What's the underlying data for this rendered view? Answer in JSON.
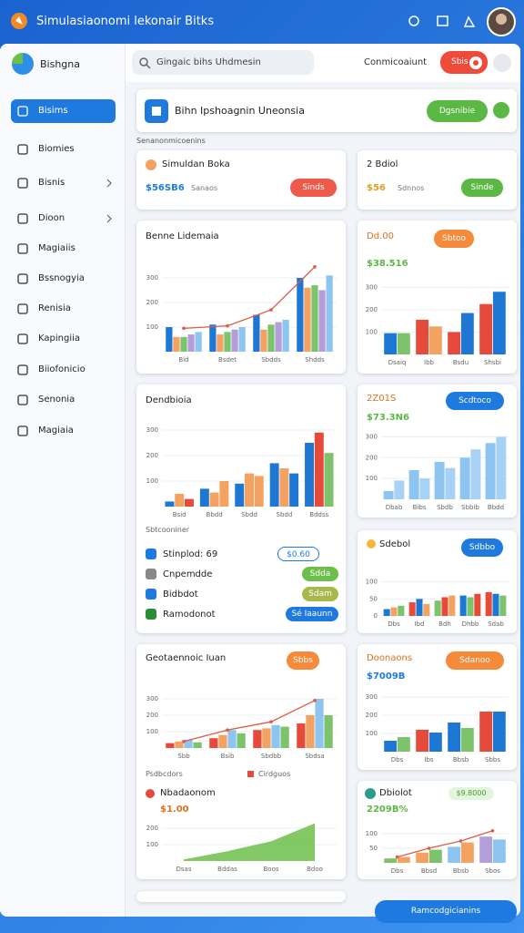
{
  "app": {
    "title": "Simulasiaonomi lekonair Bitks"
  },
  "sidebar": {
    "brand": "Bishgna",
    "items": [
      "Bisims",
      "Biomies",
      "Bisnis",
      "Dioon",
      "Magiaiis",
      "Bssnogyia",
      "Renisia",
      "Kapingiia",
      "Biiofonicio",
      "Senonia",
      "Magiaia"
    ]
  },
  "header": {
    "search": "Gingaic bihs Uhdmesin",
    "account": "Conmicoaiunt",
    "button": "Sbis"
  },
  "banner": {
    "title": "Bihn Ipshoagnin Uneonsia",
    "button": "Dgsnibie"
  },
  "section_label": "Senanonmicoenins",
  "cards": [
    {
      "title": "Simuldan Boka",
      "value": "$56SB6",
      "caption": "Sanaos",
      "button": "Sinds"
    },
    {
      "title": "2 Bdiol",
      "value": "$56",
      "caption": "Sdnnos",
      "button": "Sinde"
    },
    {
      "title": "Benne Lidemaia",
      "chart": {
        "type": "bar",
        "categories": [
          "Bid",
          "Bsdet",
          "Sbdds",
          "Shdds"
        ],
        "ylim": [
          0,
          400
        ],
        "yticks": [
          100,
          200,
          300
        ],
        "series": [
          {
            "color": "#1f77d4",
            "values": [
              100,
              110,
              150,
              300
            ]
          },
          {
            "color": "#f4a261",
            "values": [
              60,
              70,
              90,
              260
            ]
          },
          {
            "color": "#7cc36b",
            "values": [
              60,
              80,
              110,
              270
            ]
          },
          {
            "color": "#b39ddb",
            "values": [
              70,
              90,
              120,
              250
            ]
          },
          {
            "color": "#8ec5f0",
            "values": [
              80,
              100,
              130,
              310
            ]
          },
          {
            "type": "line",
            "color": "#e05a47",
            "values": [
              95,
              105,
              170,
              345
            ]
          }
        ]
      }
    },
    {
      "title": "Dd.00",
      "button": "Sbtoo",
      "value": "$38.516",
      "chart": {
        "type": "bar",
        "categories": [
          "Dsaiq",
          "Ibb",
          "Bsdu",
          "Shsbi"
        ],
        "ylim": [
          0,
          350
        ],
        "yticks": [
          100,
          200,
          300
        ],
        "series": [
          {
            "colors": [
              "#1f77d4",
              "#e64a3b",
              "#e64a3b",
              "#e64a3b"
            ],
            "values": [
              95,
              155,
              100,
              225
            ]
          },
          {
            "colors": [
              "#7cc36b",
              "#f4a261",
              "#1f77d4",
              "#1f77d4"
            ],
            "values": [
              95,
              125,
              185,
              280
            ]
          }
        ]
      }
    },
    {
      "title": "Dendbioia",
      "chart": {
        "type": "bar",
        "categories": [
          "Bsid",
          "Bbdd",
          "Sbdd",
          "Sbdd",
          "Bddss"
        ],
        "ylim": [
          0,
          350
        ],
        "yticks": [
          100,
          200,
          300
        ],
        "series": [
          {
            "color": "#1f77d4",
            "values": [
              20,
              70,
              90,
              170,
              250
            ]
          },
          {
            "colors": [
              "#f4a261",
              "#f4a261",
              "#f4a261",
              "#f4a261",
              "#e64a3b"
            ],
            "values": [
              50,
              55,
              130,
              150,
              290
            ]
          },
          {
            "colors": [
              "#e64a3b",
              "#f4a261",
              "#f4a261",
              "#1f77d4",
              "#7cc36b"
            ],
            "values": [
              30,
              100,
              120,
              130,
              210
            ]
          }
        ]
      },
      "list_title": "Sbtcooniner",
      "rows": [
        {
          "label": "Stinplod: 69",
          "button": "$0.60"
        },
        {
          "label": "Cnpemdde",
          "button": "Sdda"
        },
        {
          "label": "Bidbdot",
          "button": "Sdam"
        },
        {
          "label": "Ramodonot",
          "button": "Sé Iaaunn"
        }
      ]
    },
    {
      "title": "2Z01S",
      "button": "Scdtoco",
      "value": "$73.3N6",
      "chart": {
        "type": "bar",
        "categories": [
          "Dbab",
          "Bibs",
          "Sbdb",
          "Sbbib",
          "Bbdd"
        ],
        "ylim": [
          0,
          350
        ],
        "yticks": [
          100,
          200,
          300
        ],
        "series": [
          {
            "color": "#8ec5f0",
            "values": [
              40,
              140,
              180,
              200,
              270
            ]
          },
          {
            "color": "#a8d2f5",
            "values": [
              90,
              100,
              150,
              240,
              300
            ]
          }
        ]
      }
    },
    {
      "title": "Sdebol",
      "button": "Sdbbo",
      "chart": {
        "type": "bar",
        "categories": [
          "Dbs",
          "Ibd",
          "Bdh",
          "Dhbb",
          "Sdab"
        ],
        "ylim": [
          0,
          150
        ],
        "yticks": [
          0,
          50,
          100
        ],
        "series": [
          {
            "colors": [
              "#1f77d4",
              "#e64a3b",
              "#7cc36b",
              "#1f77d4",
              "#e64a3b"
            ],
            "values": [
              20,
              40,
              45,
              60,
              70
            ]
          },
          {
            "colors": [
              "#f4a261",
              "#1f77d4",
              "#e64a3b",
              "#7cc36b",
              "#1f77d4"
            ],
            "values": [
              25,
              50,
              55,
              55,
              65
            ]
          },
          {
            "colors": [
              "#7cc36b",
              "#f4a261",
              "#f4a261",
              "#e64a3b",
              "#7cc36b"
            ],
            "values": [
              30,
              35,
              60,
              65,
              60
            ]
          }
        ]
      }
    },
    {
      "title": "Geotaennoic Iuan",
      "button": "Sbbs",
      "chart": {
        "type": "bar",
        "categories": [
          "Sbb",
          "Bsib",
          "Sbdbb",
          "Sbdsa"
        ],
        "ylim": [
          0,
          400
        ],
        "yticks": [
          100,
          200,
          300
        ],
        "series": [
          {
            "color": "#e64a3b",
            "values": [
              30,
              60,
              110,
              150
            ]
          },
          {
            "color": "#f4a261",
            "values": [
              40,
              80,
              120,
              200
            ]
          },
          {
            "color": "#8ec5f0",
            "values": [
              50,
              110,
              140,
              300
            ]
          },
          {
            "color": "#7cc36b",
            "values": [
              35,
              90,
              130,
              200
            ]
          },
          {
            "type": "line",
            "color": "#e05a47",
            "values": [
              40,
              110,
              160,
              290
            ]
          }
        ]
      },
      "legend_title": "Psdbcdors",
      "legend": "Cirdguos",
      "sub_title": "Nbadaonom",
      "sub_value": "$1.00",
      "sub_chart": {
        "type": "area",
        "categories": [
          "Dsas",
          "Bddas",
          "Boos",
          "Bdoo"
        ],
        "ylim": [
          0,
          300
        ],
        "yticks": [
          100,
          200
        ],
        "series": [
          {
            "type": "area",
            "color": "#6cc04a",
            "values": [
              10,
              60,
              120,
              230
            ]
          }
        ]
      }
    },
    {
      "title": "Doonaons",
      "button": "Sdanoo",
      "value": "$7009B",
      "chart": {
        "type": "bar",
        "categories": [
          "Dbs",
          "Ibs",
          "Bbsb",
          "Sbbs"
        ],
        "ylim": [
          0,
          350
        ],
        "yticks": [
          100,
          200,
          300
        ],
        "series": [
          {
            "colors": [
              "#1f77d4",
              "#e64a3b",
              "#1f77d4",
              "#e64a3b"
            ],
            "values": [
              60,
              120,
              160,
              220
            ]
          },
          {
            "colors": [
              "#7cc36b",
              "#1f77d4",
              "#7cc36b",
              "#1f77d4"
            ],
            "values": [
              80,
              105,
              130,
              220
            ]
          }
        ]
      }
    },
    {
      "title": "Dbiolot",
      "chip": "$9.8000",
      "value": "2209B%",
      "chart": {
        "type": "bar",
        "categories": [
          "Dbs",
          "Bbsd",
          "Bbsb",
          "Sbos"
        ],
        "ylim": [
          0,
          150
        ],
        "yticks": [
          50,
          100
        ],
        "series": [
          {
            "colors": [
              "#7cc36b",
              "#f4a261",
              "#8ec5f0",
              "#b39ddb"
            ],
            "values": [
              15,
              35,
              55,
              90
            ]
          },
          {
            "colors": [
              "#f4a261",
              "#7cc36b",
              "#f4a261",
              "#8ec5f0"
            ],
            "values": [
              20,
              45,
              70,
              80
            ]
          },
          {
            "type": "line",
            "color": "#e05a47",
            "values": [
              20,
              50,
              75,
              110
            ]
          }
        ]
      }
    }
  ],
  "footer_button": "Ramcodgicianins"
}
